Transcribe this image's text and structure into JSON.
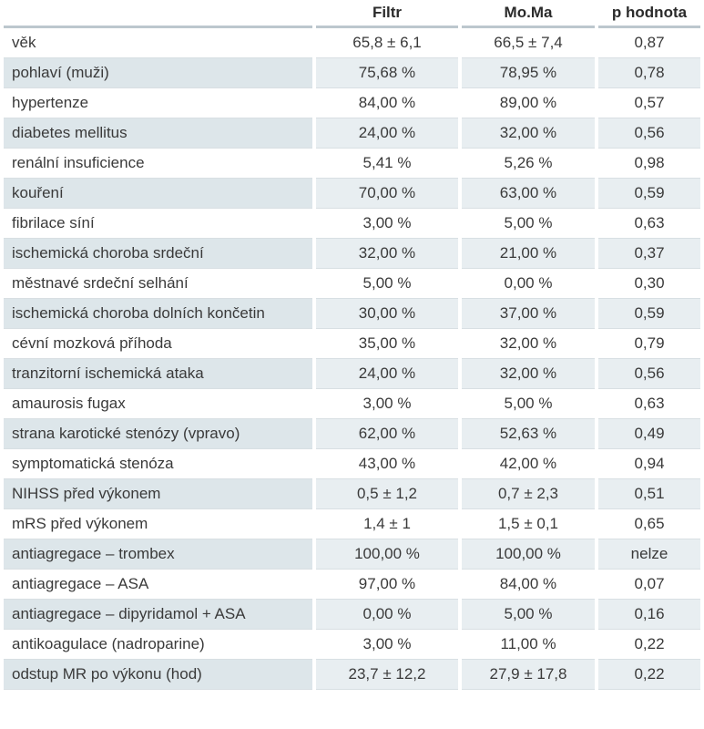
{
  "table": {
    "headers": [
      "",
      "Filtr",
      "Mo.Ma",
      "p hodnota"
    ],
    "rows": [
      [
        "věk",
        "65,8 ± 6,1",
        "66,5 ± 7,4",
        "0,87"
      ],
      [
        "pohlaví (muži)",
        "75,68 %",
        "78,95 %",
        "0,78"
      ],
      [
        "hypertenze",
        "84,00 %",
        "89,00 %",
        "0,57"
      ],
      [
        "diabetes mellitus",
        "24,00 %",
        "32,00 %",
        "0,56"
      ],
      [
        "renální insuficience",
        "5,41 %",
        "5,26 %",
        "0,98"
      ],
      [
        "kouření",
        "70,00 %",
        "63,00 %",
        "0,59"
      ],
      [
        "fibrilace síní",
        "3,00 %",
        "5,00 %",
        "0,63"
      ],
      [
        "ischemická choroba srdeční",
        "32,00 %",
        "21,00 %",
        "0,37"
      ],
      [
        "městnavé srdeční selhání",
        "5,00 %",
        "0,00 %",
        "0,30"
      ],
      [
        "ischemická choroba dolních končetin",
        "30,00 %",
        "37,00 %",
        "0,59"
      ],
      [
        "cévní mozková příhoda",
        "35,00 %",
        "32,00 %",
        "0,79"
      ],
      [
        "tranzitorní ischemická ataka",
        "24,00 %",
        "32,00 %",
        "0,56"
      ],
      [
        "amaurosis fugax",
        "3,00 %",
        "5,00 %",
        "0,63"
      ],
      [
        "strana karotické stenózy (vpravo)",
        "62,00 %",
        "52,63 %",
        "0,49"
      ],
      [
        "symptomatická stenóza",
        "43,00 %",
        "42,00 %",
        "0,94"
      ],
      [
        "NIHSS před výkonem",
        "0,5 ± 1,2",
        "0,7 ± 2,3",
        "0,51"
      ],
      [
        "mRS před výkonem",
        "1,4 ± 1",
        "1,5 ± 0,1",
        "0,65"
      ],
      [
        "antiagregace – trombex",
        "100,00 %",
        "100,00 %",
        "nelze"
      ],
      [
        "antiagregace – ASA",
        "97,00 %",
        "84,00 %",
        "0,07"
      ],
      [
        "antiagregace – dipyridamol + ASA",
        "0,00 %",
        "5,00 %",
        "0,16"
      ],
      [
        "antikoagulace (nadroparine)",
        "3,00 %",
        "11,00 %",
        "0,22"
      ],
      [
        "odstup MR po výkonu (hod)",
        "23,7 ± 12,2",
        "27,9 ± 17,8",
        "0,22"
      ]
    ]
  },
  "colors": {
    "shade_label": "#dde6ea",
    "shade_value": "#e8eef1",
    "header_rule": "#bcc7ce"
  }
}
